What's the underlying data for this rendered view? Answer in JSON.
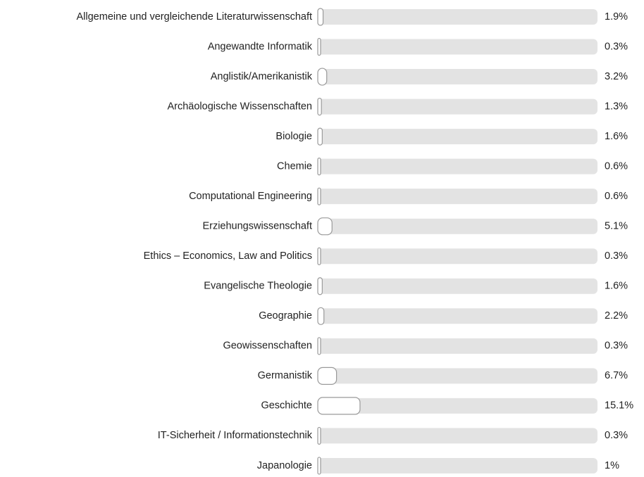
{
  "chart_data": {
    "type": "bar",
    "orientation": "horizontal",
    "categories": [
      "Allgemeine und vergleichende Literaturwissenschaft",
      "Angewandte Informatik",
      "Anglistik/Amerikanistik",
      "Archäologische Wissenschaften",
      "Biologie",
      "Chemie",
      "Computational Engineering",
      "Erziehungswissenschaft",
      "Ethics – Economics, Law and Politics",
      "Evangelische Theologie",
      "Geographie",
      "Geowissenschaften",
      "Germanistik",
      "Geschichte",
      "IT-Sicherheit / Informationstechnik",
      "Japanologie"
    ],
    "values": [
      1.9,
      0.3,
      3.2,
      1.3,
      1.6,
      0.6,
      0.6,
      5.1,
      0.3,
      1.6,
      2.2,
      0.3,
      6.7,
      15.1,
      0.3,
      1
    ],
    "value_labels": [
      "1.9%",
      "0.3%",
      "3.2%",
      "1.3%",
      "1.6%",
      "0.6%",
      "0.6%",
      "5.1%",
      "0.3%",
      "1.6%",
      "2.2%",
      "0.3%",
      "6.7%",
      "15.1%",
      "0.3%",
      "1%"
    ],
    "xlim": [
      0,
      100
    ],
    "color": "#ffffff"
  }
}
